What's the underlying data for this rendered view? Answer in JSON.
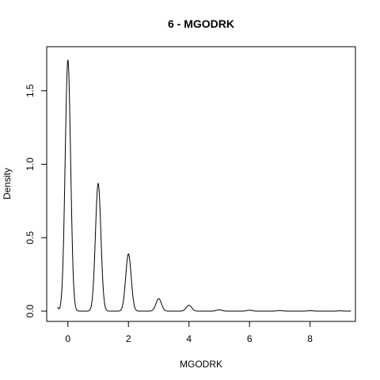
{
  "chart_data": {
    "type": "line",
    "title": "6 - MGODRK",
    "xlabel": "MGODRK",
    "ylabel": "Density",
    "xlim": [
      -0.7,
      9.5
    ],
    "ylim": [
      -0.07,
      1.8
    ],
    "x_ticks": [
      0,
      2,
      4,
      6,
      8
    ],
    "y_ticks": [
      0.0,
      0.5,
      1.0,
      1.5
    ],
    "x_tick_labels": [
      "0",
      "2",
      "4",
      "6",
      "8"
    ],
    "y_tick_labels": [
      "0.0",
      "0.5",
      "1.0",
      "1.5"
    ],
    "grid": false,
    "legend": "none",
    "line_color": "#000000",
    "series": [
      {
        "peaks": [
          {
            "x": 0,
            "density": 1.71
          },
          {
            "x": 1,
            "density": 0.87
          },
          {
            "x": 2,
            "density": 0.39
          },
          {
            "x": 3,
            "density": 0.085
          },
          {
            "x": 4,
            "density": 0.04
          },
          {
            "x": 5,
            "density": 0.009
          },
          {
            "x": 6,
            "density": 0.006
          },
          {
            "x": 7,
            "density": 0.004
          },
          {
            "x": 8,
            "density": 0.003
          },
          {
            "x": 9,
            "density": 0.002
          }
        ],
        "peak_sd": 0.09,
        "x_range": [
          -0.35,
          9.35
        ],
        "start_density": 0.025,
        "end_density": 0.002
      }
    ]
  }
}
